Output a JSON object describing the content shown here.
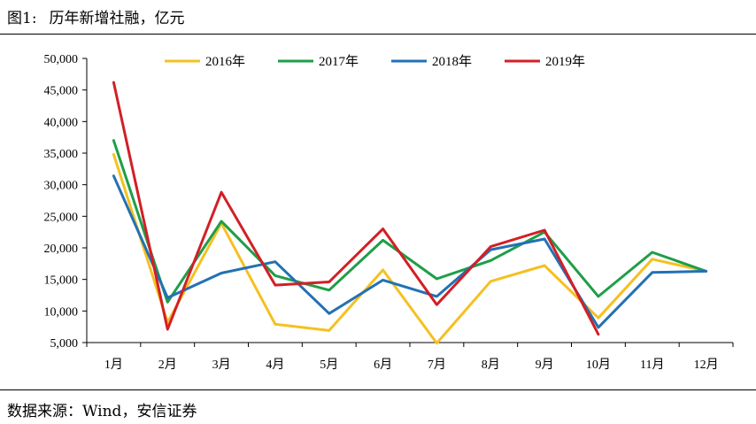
{
  "figure": {
    "number": "图1:",
    "title": "历年新增社融，亿元",
    "source": "数据来源：Wind，安信证券"
  },
  "chart_data": {
    "type": "line",
    "title": "历年新增社融，亿元",
    "xlabel": "",
    "ylabel": "",
    "categories": [
      "1月",
      "2月",
      "3月",
      "4月",
      "5月",
      "6月",
      "7月",
      "8月",
      "9月",
      "10月",
      "11月",
      "12月"
    ],
    "yticks": [
      "5,000",
      "10,000",
      "15,000",
      "20,000",
      "25,000",
      "30,000",
      "35,000",
      "40,000",
      "45,000",
      "50,000"
    ],
    "ylim": [
      5000,
      50000
    ],
    "grid": false,
    "legend_position": "top",
    "series": [
      {
        "name": "2016年",
        "color": "#f5c021",
        "values": [
          34800,
          8200,
          23900,
          7900,
          6900,
          16500,
          4900,
          14700,
          17200,
          8900,
          18200,
          16300
        ]
      },
      {
        "name": "2017年",
        "color": "#1e9e47",
        "values": [
          37000,
          11400,
          24200,
          15600,
          13300,
          21200,
          15100,
          18000,
          22500,
          12300,
          19300,
          16300
        ]
      },
      {
        "name": "2018年",
        "color": "#2271b4",
        "values": [
          31400,
          12100,
          16000,
          17800,
          9600,
          14900,
          12300,
          19700,
          21400,
          7400,
          16100,
          16300
        ]
      },
      {
        "name": "2019年",
        "color": "#d21f26",
        "values": [
          46200,
          7100,
          28800,
          14100,
          14600,
          23000,
          11000,
          20200,
          22800,
          6300,
          null,
          null
        ]
      }
    ]
  }
}
